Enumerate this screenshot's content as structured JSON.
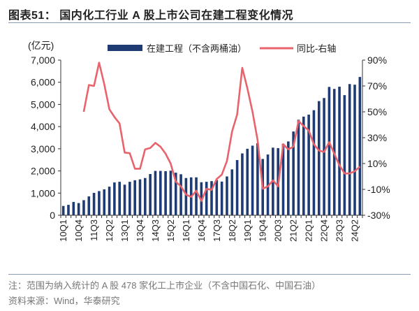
{
  "title": "图表51：  国内化工行业 A 股上市公司在建工程变化情况",
  "note": "注：范围为纳入统计的 A 股 478 家化工上市企业（不含中国石化、中国石油）",
  "source": "资料来源：Wind，华泰研究",
  "chart_data": {
    "type": "bar+line",
    "left_axis_unit": "(亿元)",
    "ylim_left": [
      0,
      7000
    ],
    "yticks_left": [
      "0",
      "1,000",
      "2,000",
      "3,000",
      "4,000",
      "5,000",
      "6,000",
      "7,000"
    ],
    "ylim_right": [
      -30,
      90
    ],
    "yticks_right": [
      "-30%",
      "-10%",
      "10%",
      "30%",
      "50%",
      "70%",
      "90%"
    ],
    "grid": false,
    "legend_placement": "top",
    "colors": {
      "bar": "#1f3b73",
      "line": "#e8636b"
    },
    "categories": [
      "10Q1",
      "10Q2",
      "10Q3",
      "10Q4",
      "11Q1",
      "11Q2",
      "11Q3",
      "11Q4",
      "12Q1",
      "12Q2",
      "12Q3",
      "12Q4",
      "13Q1",
      "13Q2",
      "13Q3",
      "13Q4",
      "14Q1",
      "14Q2",
      "14Q3",
      "14Q4",
      "15Q1",
      "15Q2",
      "15Q3",
      "15Q4",
      "16Q1",
      "16Q2",
      "16Q3",
      "16Q4",
      "17Q1",
      "17Q2",
      "17Q3",
      "17Q4",
      "18Q1",
      "18Q2",
      "18Q3",
      "18Q4",
      "19Q1",
      "19Q2",
      "19Q3",
      "19Q4",
      "20Q1",
      "20Q2",
      "20Q3",
      "20Q4",
      "21Q1",
      "21Q2",
      "21Q3",
      "21Q4",
      "22Q1",
      "22Q2",
      "22Q3",
      "22Q4",
      "23Q1",
      "23Q2",
      "23Q3",
      "23Q4",
      "24Q1",
      "24Q2",
      "24Q3"
    ],
    "xtick_labels": [
      "10Q1",
      "10Q4",
      "11Q3",
      "12Q2",
      "13Q1",
      "13Q4",
      "14Q3",
      "15Q2",
      "16Q1",
      "16Q4",
      "17Q3",
      "18Q2",
      "19Q1",
      "19Q4",
      "20Q3",
      "21Q2",
      "22Q1",
      "22Q4",
      "23Q3",
      "24Q2"
    ],
    "series": [
      {
        "name": "在建工程（不含两桶油）",
        "type": "bar",
        "axis": "left",
        "values": [
          420,
          470,
          600,
          550,
          680,
          850,
          1010,
          1090,
          1170,
          1290,
          1480,
          1510,
          1380,
          1510,
          1580,
          1620,
          1680,
          1860,
          2000,
          2000,
          1990,
          2010,
          1920,
          1850,
          1680,
          1710,
          1710,
          1490,
          1510,
          1540,
          1590,
          1520,
          1750,
          2070,
          2490,
          2790,
          3000,
          3140,
          3250,
          2540,
          2740,
          3050,
          3030,
          3220,
          3330,
          3780,
          4310,
          4450,
          4540,
          4740,
          5150,
          5290,
          5790,
          5700,
          5800,
          5420,
          5920,
          5890,
          6240
        ]
      },
      {
        "name": "同比-右轴",
        "type": "line",
        "axis": "right",
        "values": [
          null,
          null,
          null,
          null,
          50,
          70.7,
          70,
          88,
          71.6,
          52,
          46,
          41,
          18.5,
          18,
          6,
          6,
          21,
          22,
          26,
          23,
          17.6,
          10,
          -4,
          -7.7,
          -14,
          -15.8,
          -11,
          -19,
          -9.5,
          -10.4,
          -2,
          1.4,
          12,
          34.7,
          48,
          84,
          68,
          50,
          28,
          -9.5,
          -7.7,
          -3,
          -7.7,
          25,
          21,
          23,
          43,
          39,
          35.6,
          25,
          20,
          19,
          26.6,
          17.6,
          8.6,
          2.3,
          2.3,
          4,
          7.7
        ]
      }
    ]
  }
}
